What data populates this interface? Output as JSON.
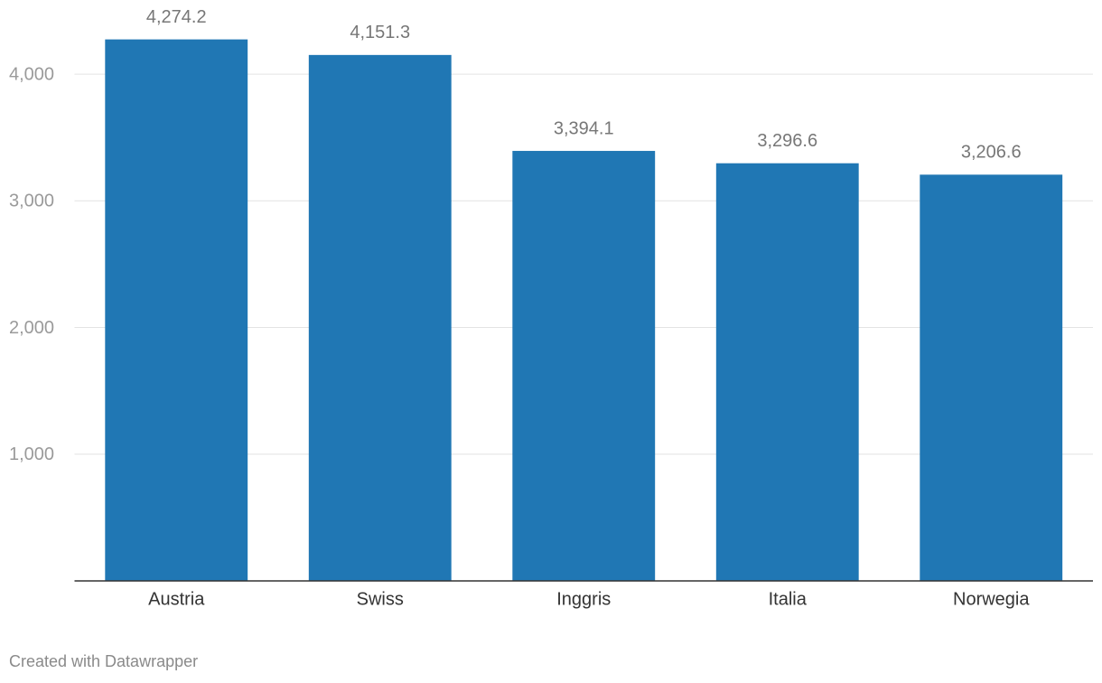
{
  "chart_data": {
    "type": "bar",
    "categories": [
      "Austria",
      "Swiss",
      "Inggris",
      "Italia",
      "Norwegia"
    ],
    "values": [
      4274.2,
      4151.3,
      3394.1,
      3296.6,
      3206.6
    ],
    "value_labels": [
      "4,274.2",
      "4,151.3",
      "3,394.1",
      "3,296.6",
      "3,206.6"
    ],
    "color": "#2077b4",
    "ylim": [
      0,
      4300
    ],
    "yticks": [
      {
        "value": 1000,
        "label": "1,000"
      },
      {
        "value": 2000,
        "label": "2,000"
      },
      {
        "value": 3000,
        "label": "3,000"
      },
      {
        "value": 4000,
        "label": "4,000"
      }
    ],
    "grid": true
  },
  "footer": "Created with Datawrapper"
}
